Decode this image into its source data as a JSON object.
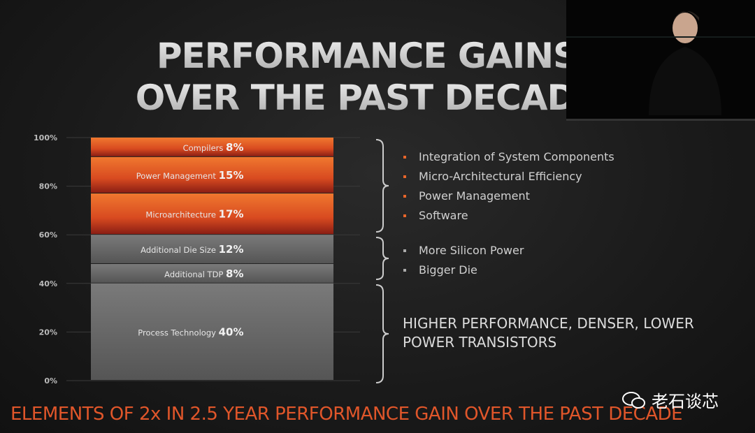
{
  "title": {
    "line1": "PERFORMANCE GAINS",
    "line2": "OVER THE PAST DECADE"
  },
  "chart_data": {
    "type": "bar",
    "stacked": true,
    "ylim": [
      0,
      100
    ],
    "yticks": [
      "0%",
      "20%",
      "40%",
      "60%",
      "80%",
      "100%"
    ],
    "grid": true,
    "series": [
      {
        "name": "Process Technology",
        "value": 40,
        "label": "40%",
        "color": "#6e6e6e"
      },
      {
        "name": "Additional TDP",
        "value": 8,
        "label": "8%",
        "color": "#6e6e6e"
      },
      {
        "name": "Additional Die Size",
        "value": 12,
        "label": "12%",
        "color": "#6e6e6e"
      },
      {
        "name": "Microarchitecture",
        "value": 17,
        "label": "17%",
        "color": "#e8652a"
      },
      {
        "name": "Power Management",
        "value": 15,
        "label": "15%",
        "color": "#e8652a"
      },
      {
        "name": "Compilers",
        "value": 8,
        "label": "8%",
        "color": "#e8652a"
      }
    ]
  },
  "groups": {
    "orange": [
      "Integration of System Components",
      "Micro-Architectural Efficiency",
      "Power Management",
      "Software"
    ],
    "grey": [
      "More Silicon Power",
      "Bigger Die"
    ],
    "process": "HIGHER PERFORMANCE, DENSER, LOWER POWER TRANSISTORS"
  },
  "footer": "ELEMENTS OF 2x IN 2.5 YEAR PERFORMANCE GAIN OVER THE PAST DECADE",
  "watermark": "老石谈芯",
  "colors": {
    "accent": "#e8652a",
    "grey": "#6e6e6e"
  }
}
